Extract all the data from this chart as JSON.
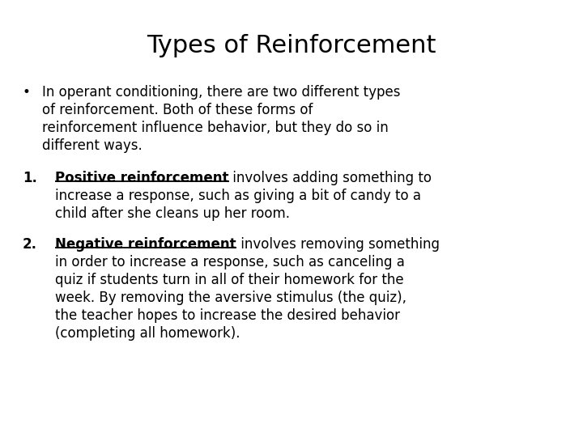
{
  "title": "Types of Reinforcement",
  "background_color": "#ffffff",
  "text_color": "#000000",
  "title_fontsize": 22,
  "body_fontsize": 12,
  "font_family": "DejaVu Sans",
  "bullet_line1": "In operant conditioning, there are two different types",
  "bullet_line2": "of reinforcement. Both of these forms of",
  "bullet_line3": "reinforcement influence behavior, but they do so in",
  "bullet_line4": "different ways.",
  "item1_bold": "Positive reinforcement",
  "item1_rest1": " involves adding something to",
  "item1_rest2": "increase a response, such as giving a bit of candy to a",
  "item1_rest3": "child after she cleans up her room.",
  "item2_bold": "Negative reinforcement",
  "item2_rest1": " involves removing something",
  "item2_rest2": "in order to increase a response, such as canceling a",
  "item2_rest3": "quiz if students turn in all of their homework for the",
  "item2_rest4": "week. By removing the aversive stimulus (the quiz),",
  "item2_rest5": "the teacher hopes to increase the desired behavior",
  "item2_rest6": "(completing all homework)."
}
